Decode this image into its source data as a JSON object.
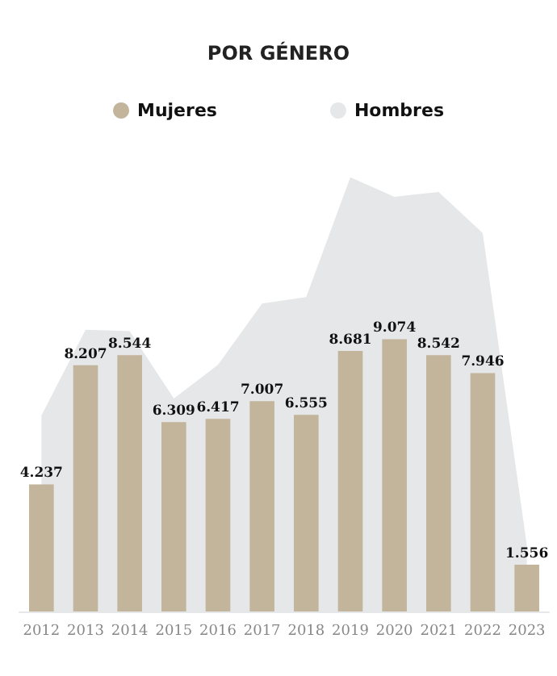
{
  "chart_data": {
    "type": "bar",
    "title": "POR GÉNERO",
    "categories": [
      "2012",
      "2013",
      "2014",
      "2015",
      "2016",
      "2017",
      "2018",
      "2019",
      "2020",
      "2021",
      "2022",
      "2023"
    ],
    "series": [
      {
        "name": "Mujeres",
        "color": "#c2b59b",
        "values": [
          4237,
          8207,
          8544,
          6309,
          6417,
          7007,
          6555,
          8681,
          9074,
          8542,
          7946,
          1556
        ],
        "value_labels": [
          "4.237",
          "8.207",
          "8.544",
          "6.309",
          "6.417",
          "7.007",
          "6.555",
          "8.681",
          "9.074",
          "8.542",
          "7.946",
          "1.556"
        ]
      },
      {
        "name": "Hombres",
        "type": "area",
        "color": "#e6e7e8",
        "values": [
          6530,
          9390,
          9340,
          7100,
          8220,
          10260,
          10480,
          14470,
          13820,
          13980,
          12610,
          2200
        ]
      }
    ],
    "grid": false,
    "legend": "top"
  }
}
